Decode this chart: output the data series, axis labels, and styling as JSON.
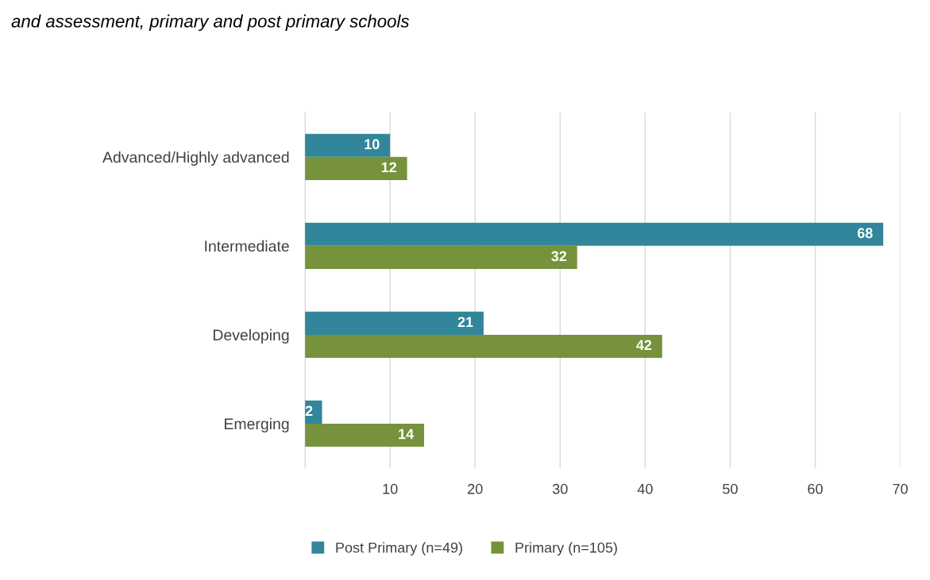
{
  "chart_data": {
    "type": "bar",
    "orientation": "horizontal",
    "title": "and assessment, primary and post primary schools",
    "categories": [
      "Advanced/Highly advanced",
      "Intermediate",
      "Developing",
      "Emerging"
    ],
    "series": [
      {
        "name": "Post Primary (n=49)",
        "color": "#31869b",
        "values": [
          10,
          68,
          21,
          2
        ]
      },
      {
        "name": "Primary (n=105)",
        "color": "#76923c",
        "values": [
          12,
          32,
          42,
          14
        ]
      }
    ],
    "xlim": [
      0,
      70
    ],
    "xticks": [
      {
        "value": 0,
        "label": null
      },
      10,
      20,
      30,
      40,
      50,
      60,
      70
    ],
    "grid": "x",
    "legend": "bottom",
    "data_labels": true
  }
}
